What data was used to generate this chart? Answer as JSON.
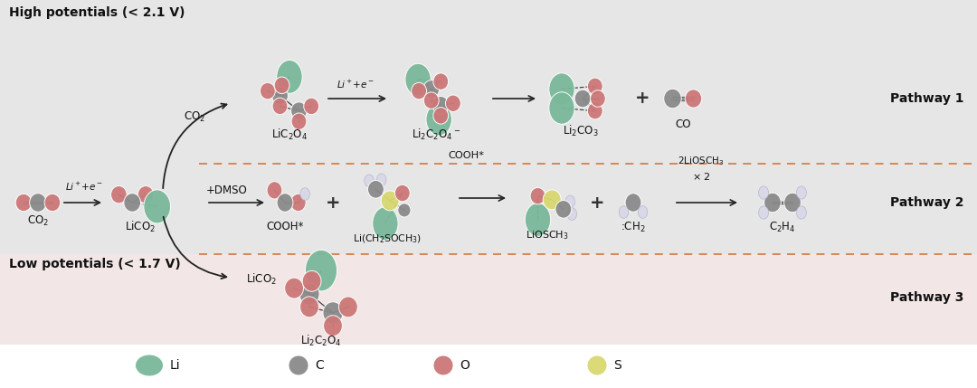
{
  "bg_top_color": "#e6e6e6",
  "bg_bot_color": "#f2e6e6",
  "dashed_line_color": "#d4814a",
  "li_color": "#7ab89a",
  "c_color": "#8a8a8a",
  "o_color": "#cc7777",
  "s_color": "#d8d870",
  "h_color": "#d8d8e8",
  "bond_color": "#444444",
  "text_color": "#111111",
  "pathway_text": [
    "Pathway 1",
    "Pathway 2",
    "Pathway 3"
  ],
  "section_labels": [
    "High potentials (< 2.1 V)",
    "Low potentials (< 1.7 V)"
  ],
  "legend_items": [
    "Li",
    "C",
    "O",
    "S"
  ]
}
